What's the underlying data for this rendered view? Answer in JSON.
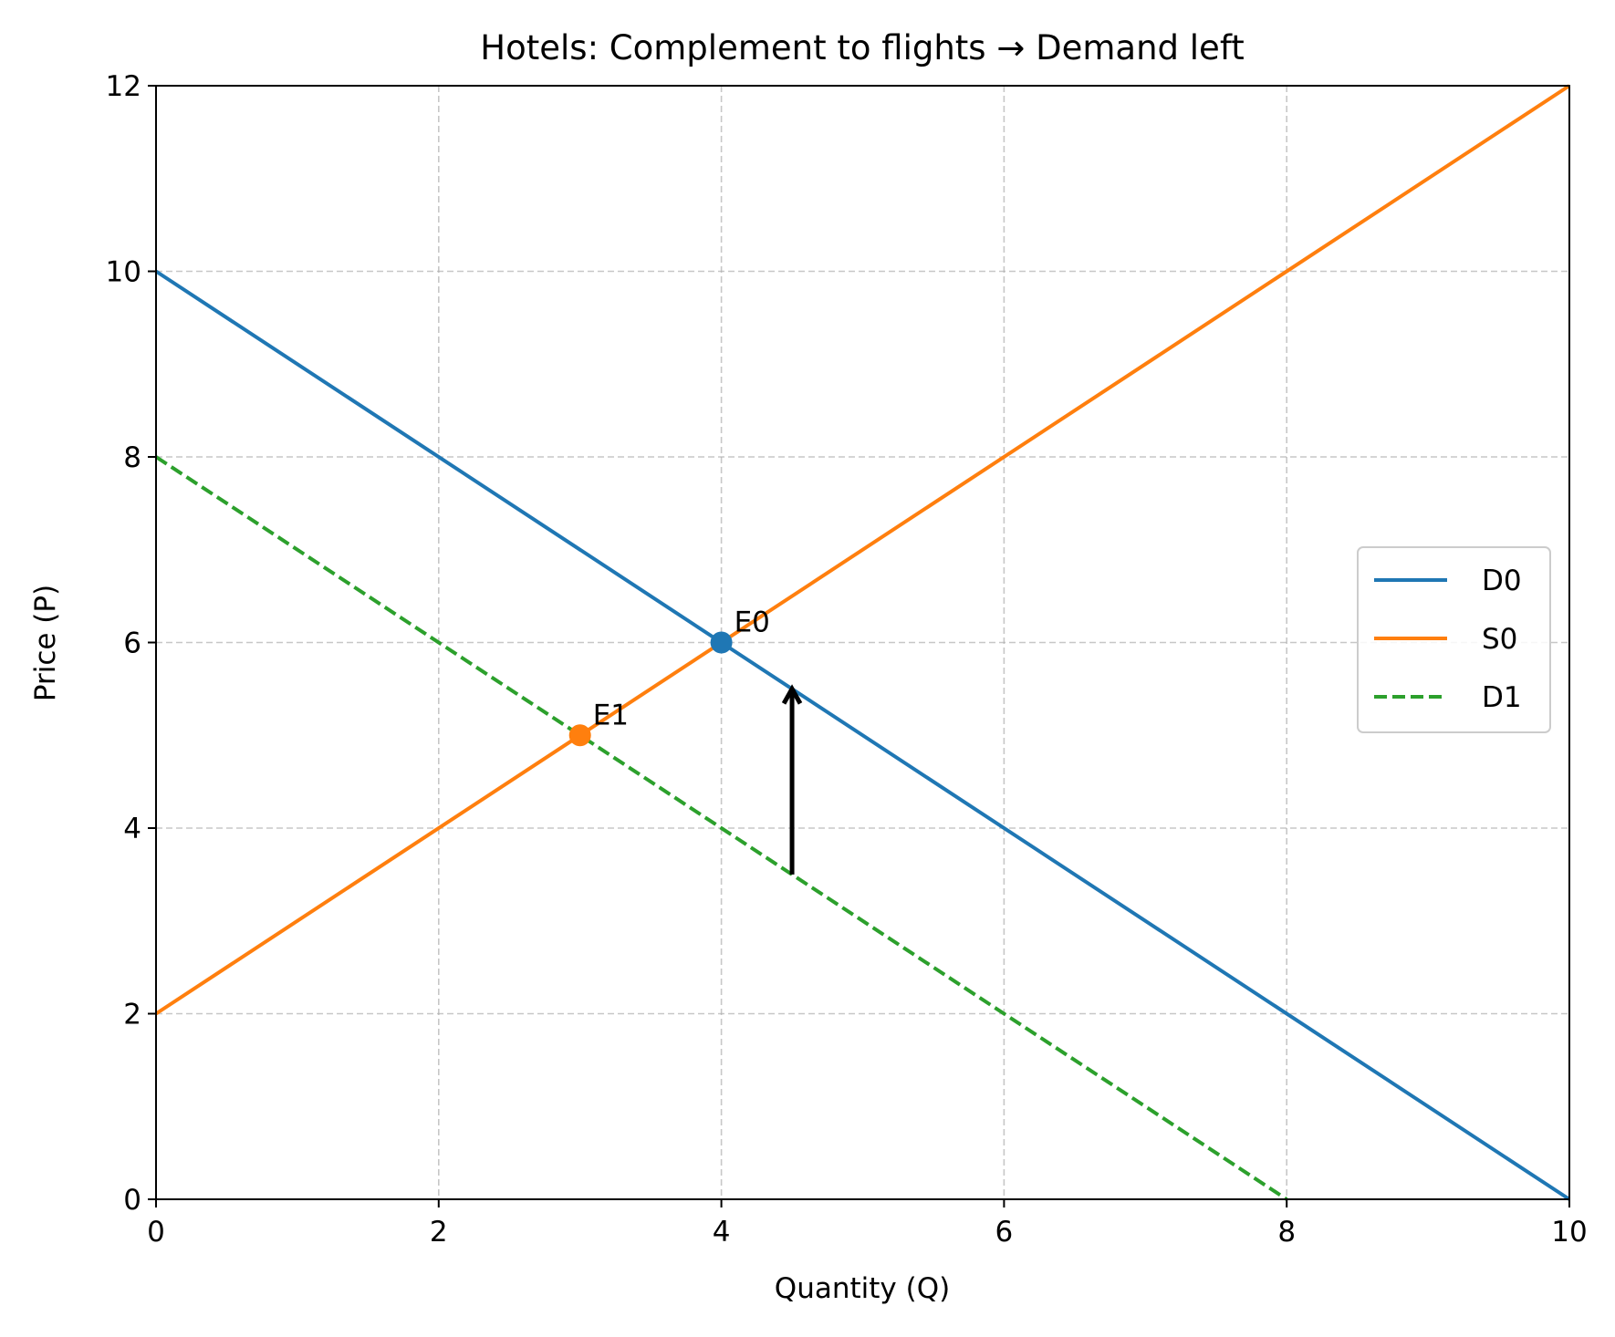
{
  "chart_data": {
    "type": "line",
    "title": "Hotels: Complement to flights → Demand left",
    "xlabel": "Quantity (Q)",
    "ylabel": "Price (P)",
    "xlim": [
      0,
      10
    ],
    "ylim": [
      0,
      12
    ],
    "xticks": [
      "0",
      "2",
      "4",
      "6",
      "8",
      "10"
    ],
    "yticks": [
      "0",
      "2",
      "4",
      "6",
      "8",
      "10",
      "12"
    ],
    "grid": true,
    "grid_style": "dashed",
    "legend_position": "center-right",
    "series": [
      {
        "name": "D0",
        "color": "#1f77b4",
        "dash": "solid",
        "x": [
          0,
          10
        ],
        "y": [
          10,
          0
        ]
      },
      {
        "name": "S0",
        "color": "#ff7f0e",
        "dash": "solid",
        "x": [
          0,
          10
        ],
        "y": [
          2,
          12
        ]
      },
      {
        "name": "D1",
        "color": "#2ca02c",
        "dash": "dashed",
        "x": [
          0,
          8
        ],
        "y": [
          8,
          0
        ]
      }
    ],
    "points": [
      {
        "label": "E0",
        "x": 4,
        "y": 6,
        "color": "#1f77b4"
      },
      {
        "label": "E1",
        "x": 3,
        "y": 5,
        "color": "#ff7f0e"
      }
    ],
    "arrow": {
      "x": 4.5,
      "from_y": 3.5,
      "to_y": 5.5,
      "color": "#000000"
    }
  }
}
